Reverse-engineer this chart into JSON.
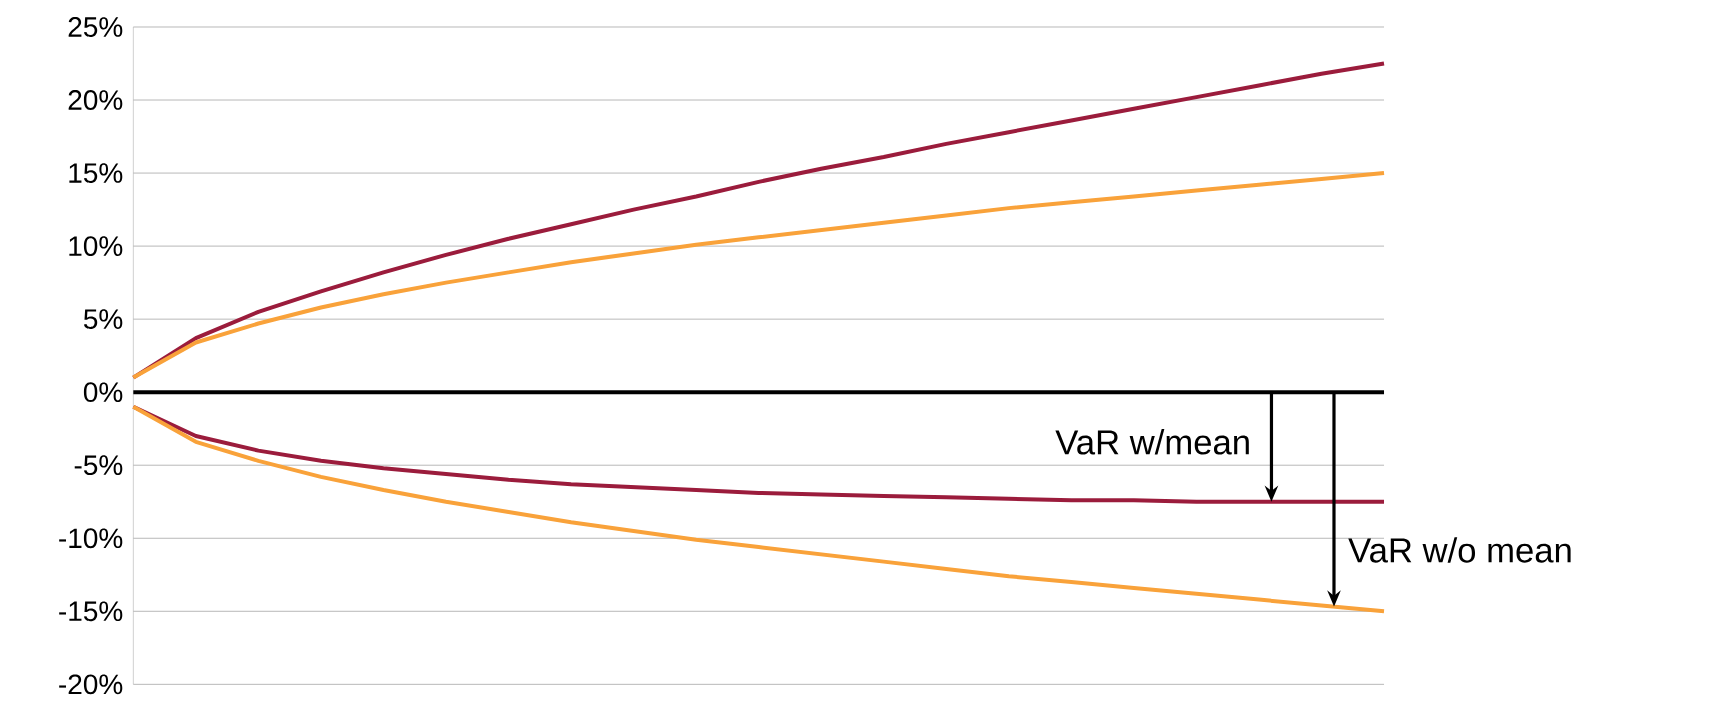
{
  "chart_data": {
    "type": "line",
    "categories": [
      null,
      null,
      null,
      null,
      null,
      null,
      null,
      null,
      null,
      null,
      null,
      null,
      null,
      null,
      null,
      null,
      null,
      null,
      null,
      null,
      null
    ],
    "series": [
      {
        "color": "#9b1c3c",
        "values": [
          1.0,
          3.7,
          5.5,
          6.9,
          8.2,
          9.4,
          10.5,
          11.5,
          12.5,
          13.4,
          14.4,
          15.3,
          16.1,
          17.0,
          17.8,
          18.6,
          19.4,
          20.2,
          21.0,
          21.8,
          22.5
        ]
      },
      {
        "color": "#f9a23a",
        "values": [
          1.0,
          3.4,
          4.7,
          5.8,
          6.7,
          7.5,
          8.2,
          8.9,
          9.5,
          10.1,
          10.6,
          11.1,
          11.6,
          12.1,
          12.6,
          13.0,
          13.4,
          13.8,
          14.2,
          14.6,
          15.0
        ]
      },
      {
        "color": "#9b1c3c",
        "values": [
          -1.0,
          -3.0,
          -4.0,
          -4.7,
          -5.2,
          -5.6,
          -6.0,
          -6.3,
          -6.5,
          -6.7,
          -6.9,
          -7.0,
          -7.1,
          -7.2,
          -7.3,
          -7.4,
          -7.4,
          -7.5,
          -7.5,
          -7.5,
          -7.5
        ]
      },
      {
        "color": "#f9a23a",
        "values": [
          -1.0,
          -3.4,
          -4.7,
          -5.8,
          -6.7,
          -7.5,
          -8.2,
          -8.9,
          -9.5,
          -10.1,
          -10.6,
          -11.1,
          -11.6,
          -12.1,
          -12.6,
          -13.0,
          -13.4,
          -13.8,
          -14.2,
          -14.6,
          -15.0
        ]
      }
    ],
    "ylim": [
      -20,
      25
    ],
    "yticks": [
      {
        "value": -20,
        "label": "-20%"
      },
      {
        "value": -15,
        "label": "-15%"
      },
      {
        "value": -10,
        "label": "-10%"
      },
      {
        "value": -5,
        "label": "-5%"
      },
      {
        "value": 0,
        "label": "0%"
      },
      {
        "value": 5,
        "label": "5%"
      },
      {
        "value": 10,
        "label": "10%"
      },
      {
        "value": 15,
        "label": "15%"
      },
      {
        "value": 20,
        "label": "20%"
      },
      {
        "value": 25,
        "label": "25%"
      }
    ],
    "grid": "y",
    "tick_labels": "y",
    "marker": "none",
    "line_style": "solid",
    "ref_lines": [
      {
        "axis": "y",
        "value": 0,
        "color": "#000000"
      }
    ],
    "annotations": [
      "VaR w/mean",
      "VaR w/o mean"
    ]
  }
}
